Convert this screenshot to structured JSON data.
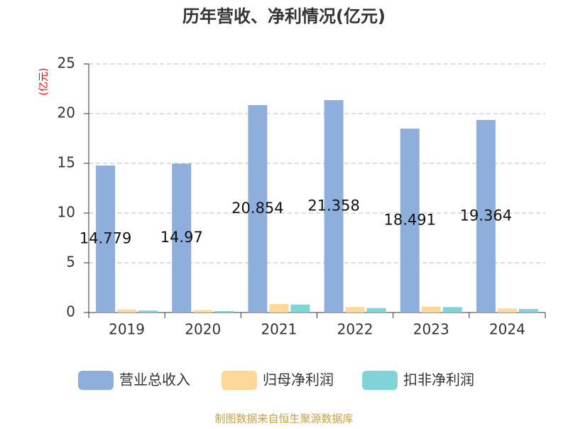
{
  "chart_data": {
    "type": "bar",
    "title": "历年营收、净利情况(亿元)",
    "y_label": "(亿元)",
    "categories": [
      "2019",
      "2020",
      "2021",
      "2022",
      "2023",
      "2024"
    ],
    "series": [
      {
        "name": "营业总收入",
        "color": "#8eaedb",
        "values": [
          14.779,
          14.97,
          20.854,
          21.358,
          18.491,
          19.364
        ],
        "show_labels": true
      },
      {
        "name": "归母净利润",
        "color": "#fdd89b",
        "values": [
          0.3,
          0.25,
          0.85,
          0.55,
          0.6,
          0.4
        ]
      },
      {
        "name": "扣非净利润",
        "color": "#80d4d8",
        "values": [
          0.2,
          0.15,
          0.8,
          0.45,
          0.55,
          0.35
        ]
      }
    ],
    "ylim": [
      0,
      25
    ],
    "yticks": [
      0,
      5,
      10,
      15,
      20,
      25
    ],
    "grid": true,
    "source": "制图数据来自恒生聚源数据库"
  }
}
